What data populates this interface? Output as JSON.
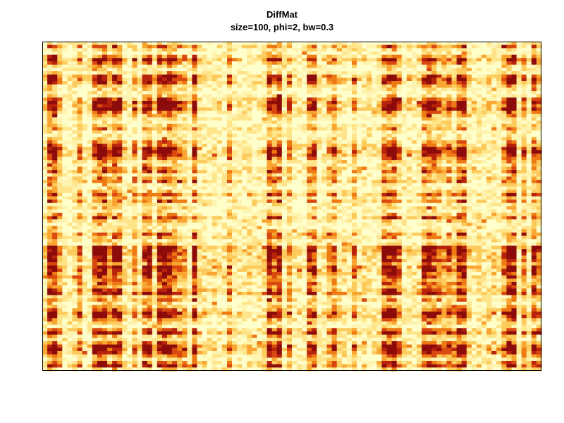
{
  "chart_data": {
    "type": "heatmap",
    "title": "DiffMat",
    "subtitle": "size=100, phi=2, bw=0.3",
    "xlabel": "",
    "ylabel": "",
    "n_rows": 100,
    "n_cols": 100,
    "colormap": "heat (light yellow → orange → dark red)",
    "palette": [
      "#FFFFCC",
      "#FFF3B0",
      "#FFE48A",
      "#FDCB5C",
      "#F9A531",
      "#EE7A14",
      "#D9480F",
      "#B8230C",
      "#8C0B0B"
    ],
    "axes_visible": false,
    "legend": false,
    "row_weights": [
      0.2,
      0.6,
      0.3,
      0.2,
      0.5,
      0.9,
      0.6,
      0.3,
      0.2,
      0.3,
      0.8,
      0.9,
      0.7,
      0.4,
      0.3,
      0.2,
      0.3,
      0.7,
      0.9,
      0.8,
      0.9,
      0.6,
      0.4,
      0.3,
      0.2,
      0.3,
      0.5,
      0.2,
      0.2,
      0.3,
      0.5,
      0.6,
      0.9,
      0.9,
      0.8,
      0.6,
      0.4,
      0.3,
      0.5,
      0.6,
      0.3,
      0.5,
      0.6,
      0.2,
      0.2,
      0.4,
      0.7,
      0.3,
      0.6,
      0.2,
      0.3,
      0.2,
      0.4,
      0.7,
      0.3,
      0.2,
      0.2,
      0.3,
      0.6,
      0.5,
      0.2,
      0.3,
      0.9,
      0.9,
      0.8,
      0.7,
      0.8,
      0.5,
      0.9,
      0.8,
      0.7,
      0.6,
      0.5,
      0.6,
      0.5,
      0.7,
      0.9,
      0.3,
      0.5,
      0.2,
      0.4,
      0.6,
      0.9,
      0.8,
      0.5,
      0.3,
      0.2,
      0.6,
      0.9,
      0.4,
      0.3,
      0.6,
      0.9,
      0.9,
      0.8,
      0.5,
      0.3,
      0.6,
      0.8,
      0.3
    ],
    "col_weights": [
      0.3,
      0.9,
      0.9,
      0.5,
      0.2,
      0.2,
      0.3,
      0.6,
      0.2,
      0.2,
      0.8,
      0.9,
      0.9,
      0.6,
      0.9,
      0.8,
      0.3,
      0.2,
      0.6,
      0.2,
      0.8,
      0.9,
      0.3,
      0.9,
      0.9,
      0.9,
      0.7,
      0.6,
      0.5,
      0.2,
      0.9,
      0.3,
      0.2,
      0.2,
      0.3,
      0.2,
      0.2,
      0.6,
      0.2,
      0.2,
      0.2,
      0.3,
      0.2,
      0.2,
      0.3,
      0.9,
      0.7,
      0.9,
      0.2,
      0.6,
      0.2,
      0.2,
      0.2,
      0.7,
      0.8,
      0.2,
      0.2,
      0.5,
      0.7,
      0.3,
      0.3,
      0.2,
      0.6,
      0.2,
      0.3,
      0.2,
      0.2,
      0.3,
      0.8,
      0.9,
      0.9,
      0.6,
      0.2,
      0.3,
      0.2,
      0.3,
      0.8,
      0.9,
      0.8,
      0.6,
      0.5,
      0.7,
      0.5,
      0.9,
      0.9,
      0.3,
      0.2,
      0.3,
      0.2,
      0.3,
      0.3,
      0.2,
      0.6,
      0.9,
      0.9,
      0.2,
      0.6,
      0.2,
      0.8,
      0.6
    ],
    "seed": 73
  }
}
